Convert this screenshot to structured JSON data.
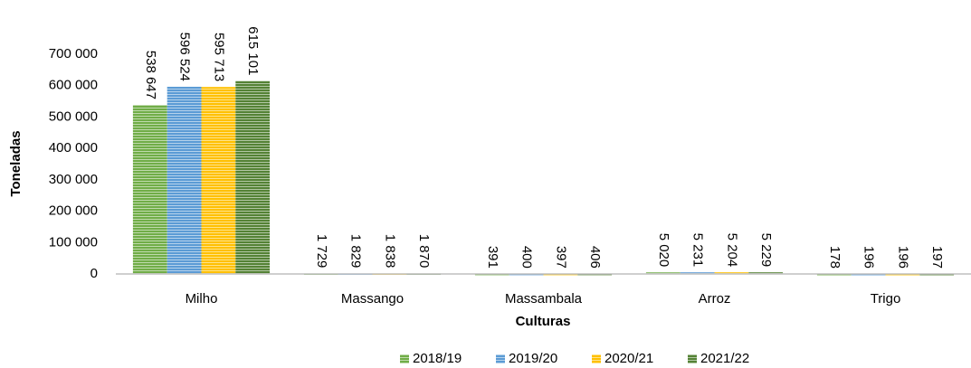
{
  "chart_data": {
    "type": "bar",
    "categories": [
      "Milho",
      "Massango",
      "Massambala",
      "Arroz",
      "Trigo"
    ],
    "series": [
      {
        "name": "2018/19",
        "color": "#70ad47",
        "values": [
          538647,
          1729,
          391,
          5020,
          178
        ],
        "value_labels": [
          "538 647",
          "1 729",
          "391",
          "5 020",
          "178"
        ]
      },
      {
        "name": "2019/20",
        "color": "#5b9bd5",
        "values": [
          596524,
          1829,
          400,
          5231,
          196
        ],
        "value_labels": [
          "596 524",
          "1 829",
          "400",
          "5 231",
          "196"
        ]
      },
      {
        "name": "2020/21",
        "color": "#ffc000",
        "values": [
          595713,
          1838,
          397,
          5204,
          196
        ],
        "value_labels": [
          "595 713",
          "1 838",
          "397",
          "5 204",
          "196"
        ]
      },
      {
        "name": "2021/22",
        "color": "#548235",
        "values": [
          615101,
          1870,
          406,
          5229,
          197
        ],
        "value_labels": [
          "615 101",
          "1 870",
          "406",
          "5 229",
          "197"
        ]
      }
    ],
    "y_label": "Toneladas",
    "x_label": "Culturas",
    "ylim": [
      0,
      700000
    ],
    "yticks": [
      0,
      {
        "value": 100000,
        "label": "100 000"
      },
      {
        "value": 200000,
        "label": "200 000"
      },
      {
        "value": 300000,
        "label": "300 000"
      },
      {
        "value": 400000,
        "label": "400 000"
      },
      {
        "value": 500000,
        "label": "500 000"
      },
      {
        "value": 600000,
        "label": "600 000"
      },
      {
        "value": 700000,
        "label": "700 000"
      }
    ],
    "grid": false,
    "legend": "bottom"
  }
}
